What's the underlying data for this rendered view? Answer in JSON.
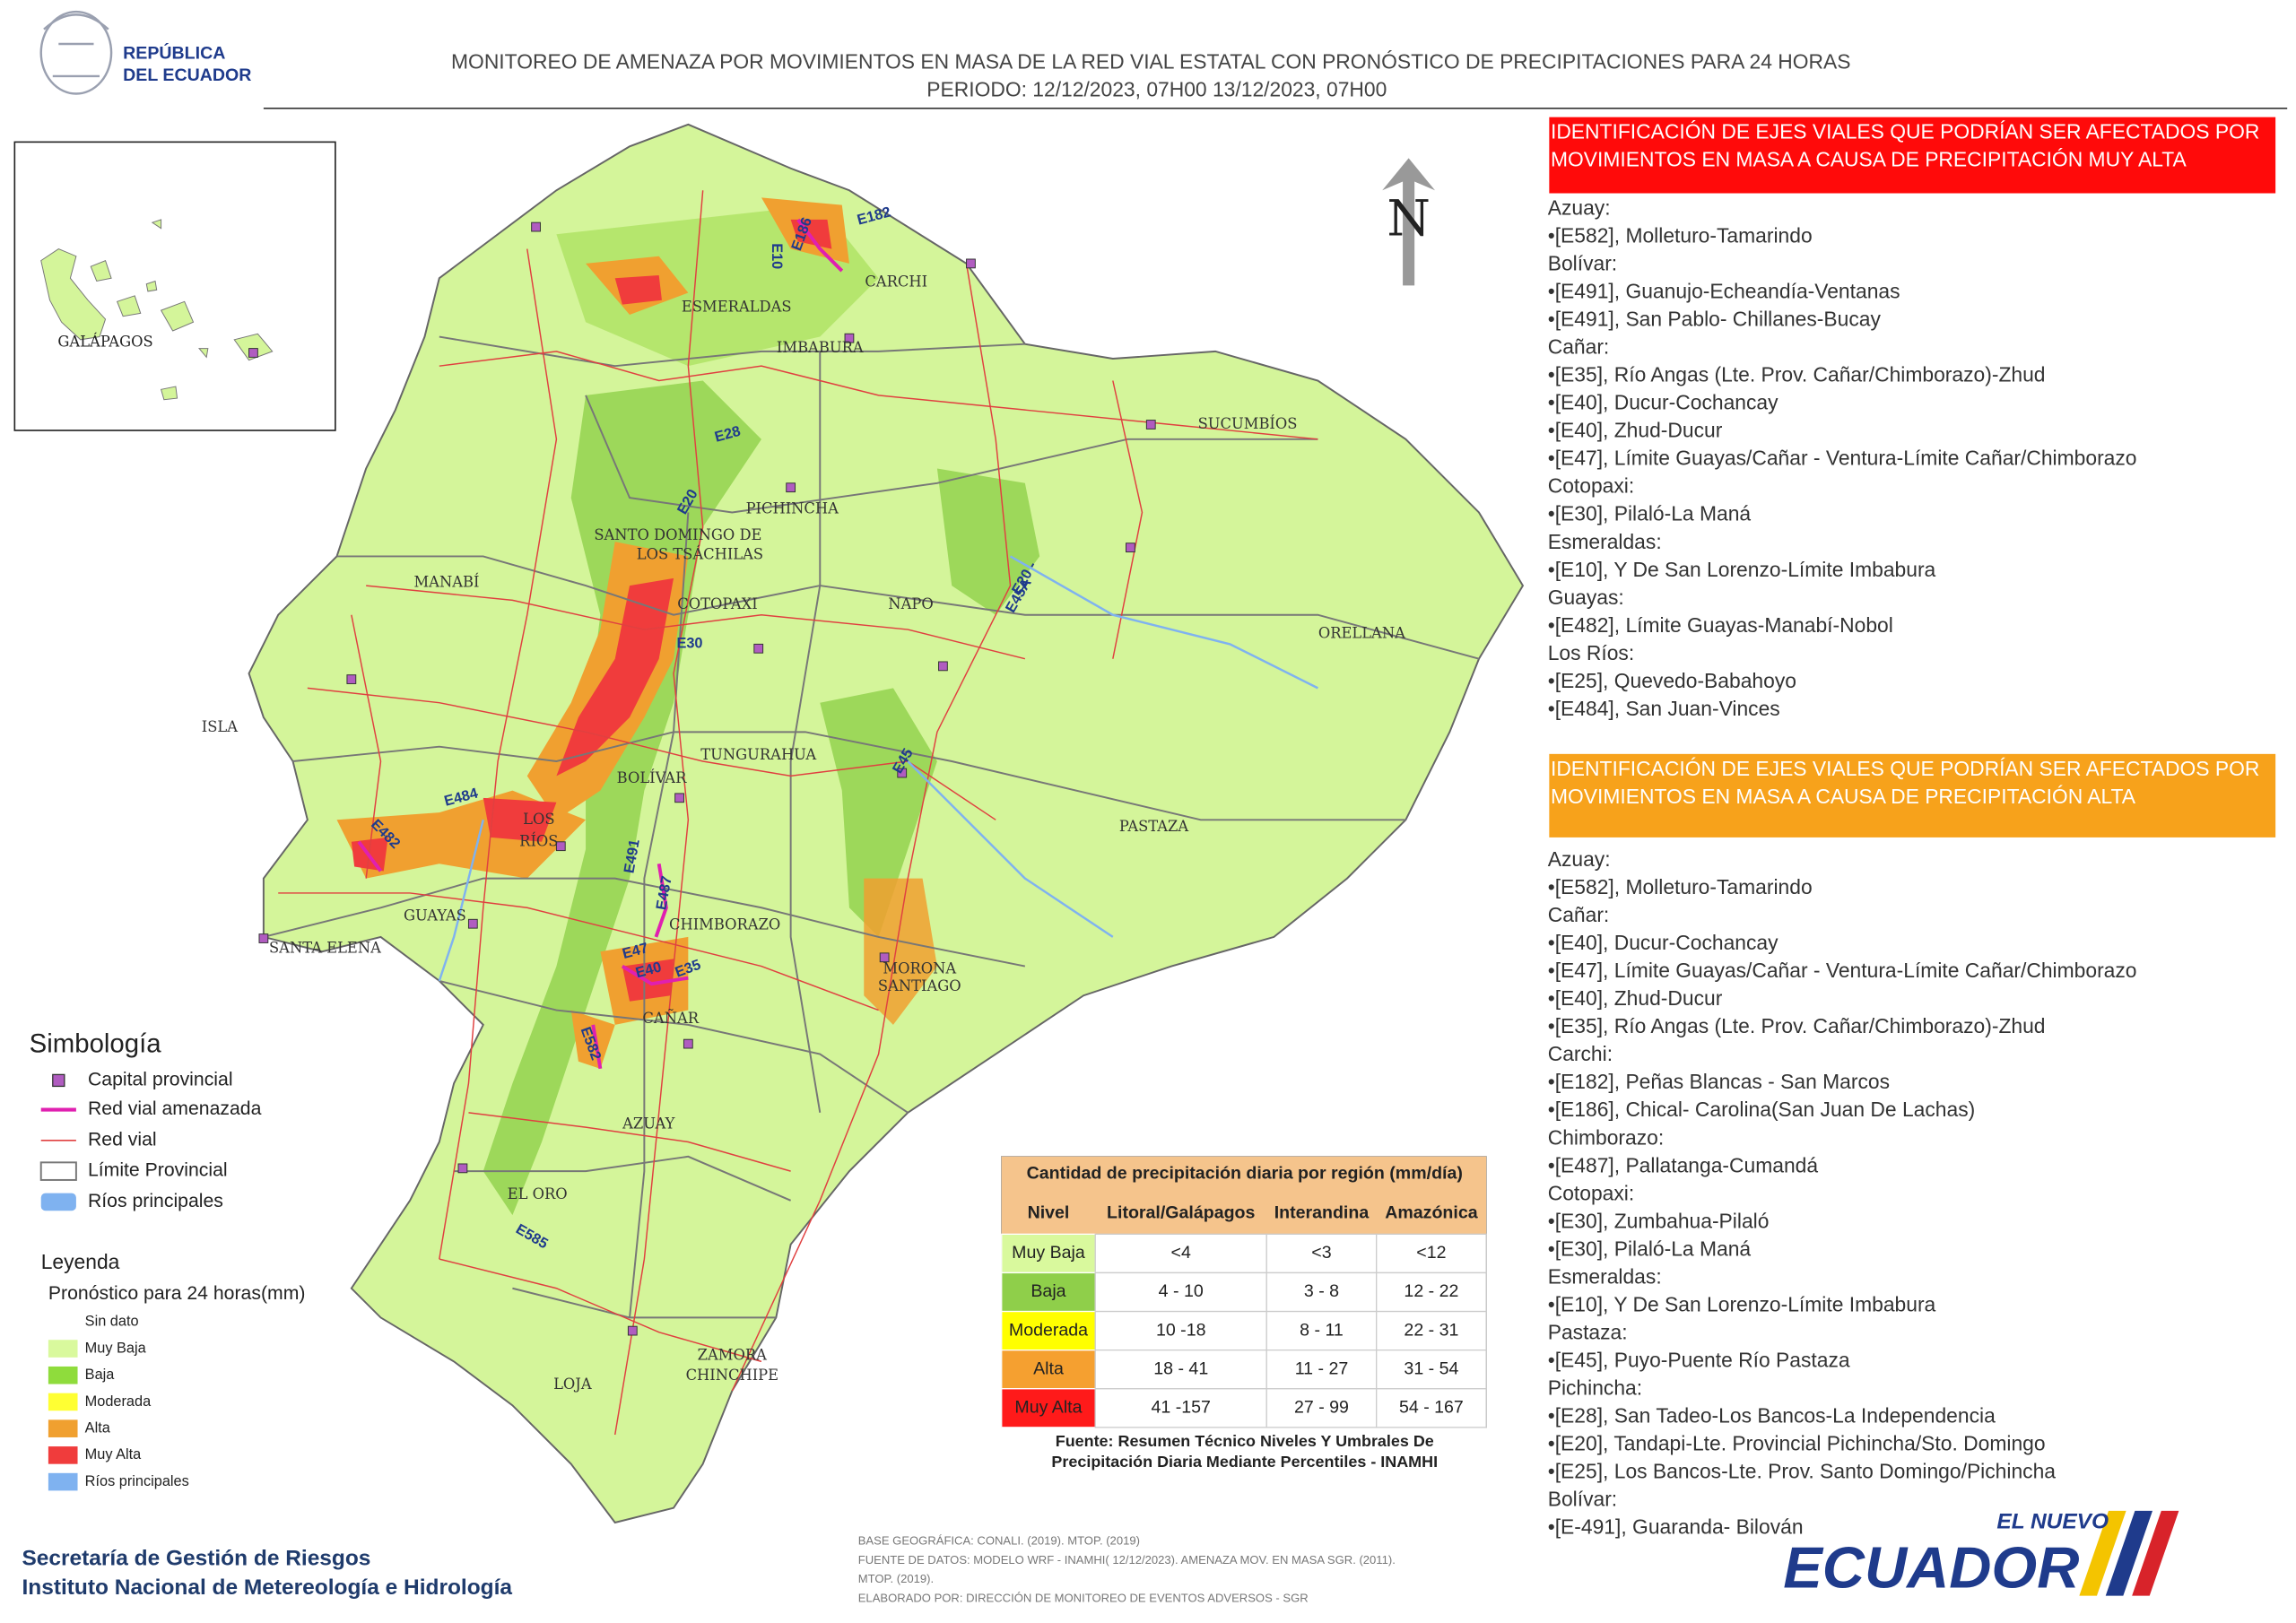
{
  "header": {
    "logo": [
      "REPÚBLICA",
      "DEL ECUADOR"
    ],
    "title": "MONITOREO DE AMENAZA POR MOVIMIENTOS EN MASA DE LA RED VIAL  ESTATAL  CON PRONÓSTICO  DE  PRECIPITACIONES PARA 24 HORAS",
    "period": "PERIODO: 12/12/2023, 07H00 13/12/2023, 07H00"
  },
  "map": {
    "north": "N",
    "inset_label": "GALÁPAGOS",
    "provinces": [
      "ESMERALDAS",
      "CARCHI",
      "IMBABURA",
      "SUCUMBÍOS",
      "PICHINCHA",
      "SANTO DOMINGO DE",
      "LOS TSÁCHILAS",
      "MANABÍ",
      "COTOPAXI",
      "NAPO",
      "ORELLANA",
      "ISLA",
      "TUNGURAHUA",
      "BOLÍVAR",
      "LOS",
      "RÍOS",
      "PASTAZA",
      "GUAYAS",
      "CHIMBORAZO",
      "SANTA ELENA",
      "MORONA",
      "SANTIAGO",
      "CAÑAR",
      "AZUAY",
      "EL ORO",
      "ZAMORA",
      "CHINCHIPE",
      "LOJA"
    ],
    "roads": [
      "E182",
      "E10",
      "E186",
      "E28",
      "E20",
      "E30",
      "E20 -",
      "E45A",
      "E45",
      "E484",
      "E482",
      "E491",
      "E487",
      "E47",
      "E40",
      "E35",
      "E582",
      "E585"
    ]
  },
  "legend": {
    "title": "Simbología",
    "symbols": [
      "Capital provincial",
      "Red vial amenazada",
      "Red vial",
      "Límite Provincial",
      "Ríos principales"
    ],
    "forecast_title": "Leyenda",
    "forecast_subtitle": "Pronóstico para 24 horas(mm)",
    "levels": [
      {
        "label": "Sin dato",
        "color": "#ffffff"
      },
      {
        "label": "Muy Baja",
        "color": "#d9f99d"
      },
      {
        "label": "Baja",
        "color": "#8fdc3c"
      },
      {
        "label": "Moderada",
        "color": "#ffff33"
      },
      {
        "label": "Alta",
        "color": "#f0a030"
      },
      {
        "label": "Muy Alta",
        "color": "#f03c3c"
      },
      {
        "label": "Ríos principales",
        "color": "#7fb2f0"
      }
    ]
  },
  "table": {
    "title": "Cantidad de precipitación diaria por región (mm/día)",
    "headers": [
      "Nivel",
      "Litoral/Galápagos",
      "Interandina",
      "Amazónica"
    ],
    "rows": [
      {
        "level": "Muy Baja",
        "color": "#d9f99d",
        "values": [
          "<4",
          "<3",
          "<12"
        ]
      },
      {
        "level": "Baja",
        "color": "#8fcf4a",
        "values": [
          "4 - 10",
          "3 - 8",
          "12 - 22"
        ]
      },
      {
        "level": "Moderada",
        "color": "#ffff00",
        "values": [
          "10 -18",
          "8 - 11",
          "22 - 31"
        ]
      },
      {
        "level": "Alta",
        "color": "#f5a030",
        "values": [
          "18 - 41",
          "11 - 27",
          "31 - 54"
        ]
      },
      {
        "level": "Muy Alta",
        "color": "#ff1a1a",
        "values": [
          "41 -157",
          "27 - 99",
          "54 - 167"
        ]
      }
    ],
    "source": [
      "Fuente: Resumen Técnico Niveles Y Umbrales De",
      "Precipitación Diaria Mediante Percentiles - INAMHI"
    ]
  },
  "panels": [
    {
      "title": [
        "IDENTIFICACIÓN DE EJES VIALES QUE PODRÍAN SER AFECTADOS POR",
        "MOVIMIENTOS EN MASA A CAUSA DE PRECIPITACIÓN MUY ALTA"
      ],
      "lines": [
        "Azuay:",
        "•[E582], Molleturo-Tamarindo",
        "Bolívar:",
        "•[E491], Guanujo-Echeandía-Ventanas",
        "•[E491], San Pablo- Chillanes-Bucay",
        "Cañar:",
        "•[E35], Río Angas (Lte. Prov. Cañar/Chimborazo)-Zhud",
        "•[E40], Ducur-Cochancay",
        "•[E40], Zhud-Ducur",
        "•[E47], Límite Guayas/Cañar - Ventura-Límite Cañar/Chimborazo",
        "Cotopaxi:",
        "•[E30], Pilaló-La Maná",
        "Esmeraldas:",
        "•[E10], Y De San Lorenzo-Límite Imbabura",
        "Guayas:",
        "•[E482], Límite Guayas-Manabí-Nobol",
        "Los Ríos:",
        "•[E25], Quevedo-Babahoyo",
        "•[E484], San Juan-Vinces"
      ]
    },
    {
      "title": [
        "IDENTIFICACIÓN DE EJES VIALES QUE PODRÍAN SER AFECTADOS POR",
        "MOVIMIENTOS EN MASA A CAUSA DE PRECIPITACIÓN  ALTA"
      ],
      "lines": [
        "Azuay:",
        "•[E582], Molleturo-Tamarindo",
        "Cañar:",
        "•[E40], Ducur-Cochancay",
        "•[E47], Límite Guayas/Cañar - Ventura-Límite Cañar/Chimborazo",
        "•[E40], Zhud-Ducur",
        "•[E35], Río Angas (Lte. Prov. Cañar/Chimborazo)-Zhud",
        "Carchi:",
        "•[E182], Peñas Blancas - San Marcos",
        "•[E186], Chical- Carolina(San Juan De Lachas)",
        "Chimborazo:",
        "•[E487], Pallatanga-Cumandá",
        "Cotopaxi:",
        "•[E30], Zumbahua-Pilaló",
        "•[E30], Pilaló-La Maná",
        "Esmeraldas:",
        "•[E10], Y De San Lorenzo-Límite Imbabura",
        "Pastaza:",
        "•[E45], Puyo-Puente Río Pastaza",
        "Pichincha:",
        "•[E28], San Tadeo-Los Bancos-La Independencia",
        "•[E20], Tandapi-Lte. Provincial Pichincha/Sto. Domingo",
        "•[E25], Los Bancos-Lte. Prov. Santo Domingo/Pichincha",
        "Bolívar:",
        "•[E-491], Guaranda- Bilován"
      ]
    }
  ],
  "footer": {
    "organizations": [
      "Secretaría de Gestión de Riesgos",
      "Instituto Nacional de Metereología e Hidrología"
    ],
    "credits": [
      "BASE GEOGRÁFICA: CONALI. (2019). MTOP. (2019)",
      "FUENTE DE DATOS: MODELO WRF - INAMHI( 12/12/2023).  AMENAZA MOV. EN MASA SGR. (2011).",
      "MTOP. (2019).",
      "ELABORADO POR: DIRECCIÓN DE MONITOREO DE EVENTOS ADVERSOS - SGR"
    ],
    "brand": [
      "EL NUEVO",
      "ECUADOR"
    ]
  }
}
